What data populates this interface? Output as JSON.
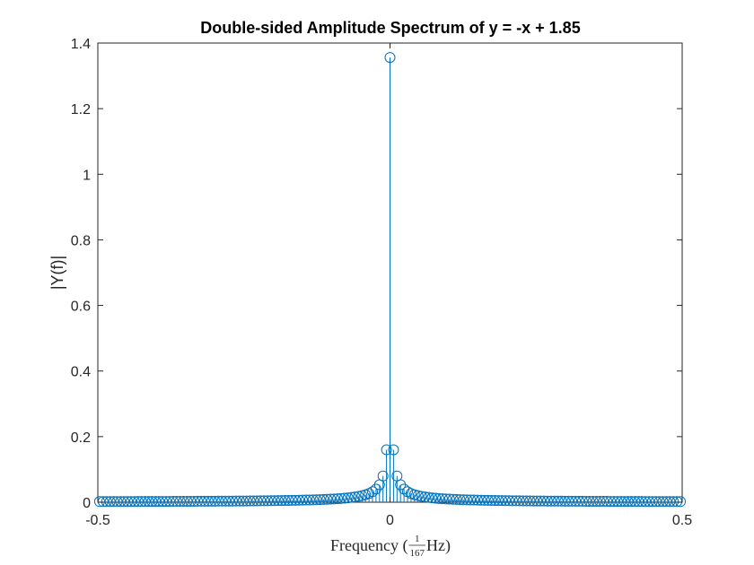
{
  "chart_data": {
    "type": "stem",
    "title": "Double-sided Amplitude Spectrum of y = -x + 1.85",
    "ylabel": "|Y(f)|",
    "xlabel": {
      "prefix": "Frequency (",
      "frac_num": "1",
      "frac_den": "167",
      "suffix": " Hz)"
    },
    "xlim": [
      -0.5,
      0.5
    ],
    "ylim": [
      0,
      1.4
    ],
    "xticks": [
      -0.5,
      0,
      0.5
    ],
    "xtick_labels": [
      "-0.5",
      "0",
      "0.5"
    ],
    "yticks": [
      0,
      0.2,
      0.4,
      0.6,
      0.8,
      1.0,
      1.2,
      1.4
    ],
    "ytick_labels": [
      "0",
      "0.2",
      "0.4",
      "0.6",
      "0.8",
      "1",
      "1.2",
      "1.4"
    ],
    "color": "#0072BD",
    "grid": false,
    "series": {
      "N": 167,
      "peak_value": 1.356,
      "x_step": 0.005988
    }
  }
}
